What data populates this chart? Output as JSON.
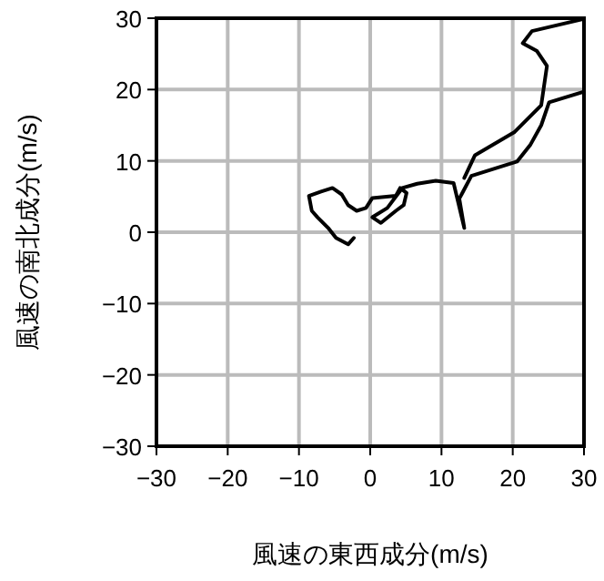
{
  "chart_data": {
    "type": "line",
    "xlabel": "風速の東西成分(m/s)",
    "ylabel": "風速の南北成分(m/s)",
    "series": [
      {
        "color": "#000000",
        "x": [
          -2.3,
          -3.1,
          -4.8,
          -5.9,
          -7.4,
          -8.2,
          -8.6,
          -6.9,
          -5.3,
          -4.0,
          -3.1,
          -1.9,
          -0.6,
          0.3,
          3.6,
          4.2,
          5.1,
          4.7,
          3.6,
          1.5,
          0.3,
          2.4,
          4.5,
          6.6,
          9.2,
          11.7,
          13.2,
          12.5,
          14.2,
          20.6,
          22.5,
          24.0,
          25.1,
          30,
          null,
          30,
          22.7,
          21.4,
          23.4,
          24.8,
          24.0,
          20.2,
          14.7,
          13.2
        ],
        "values": [
          -0.8,
          -1.7,
          -0.8,
          0.6,
          2.1,
          3.0,
          5.1,
          5.7,
          6.2,
          5.3,
          3.8,
          3.0,
          3.4,
          4.8,
          5.1,
          6.2,
          5.5,
          3.8,
          3.0,
          1.3,
          2.1,
          3.4,
          6.2,
          6.8,
          7.2,
          6.9,
          0.6,
          4.7,
          7.9,
          9.9,
          12.3,
          15.0,
          18.2,
          19.7,
          null,
          29.9,
          28.2,
          26.5,
          25.4,
          23.3,
          17.8,
          14.0,
          10.8,
          7.6
        ]
      }
    ],
    "xlim": [
      -30,
      30
    ],
    "ylim": [
      -30,
      30
    ],
    "xticks": [
      {
        "value": -30,
        "label": "−30"
      },
      {
        "value": -20,
        "label": "−20"
      },
      {
        "value": -10,
        "label": "−10"
      },
      0,
      10,
      20,
      30
    ],
    "yticks": [
      {
        "value": -30,
        "label": "−30"
      },
      {
        "value": -20,
        "label": "−20"
      },
      {
        "value": -10,
        "label": "−10"
      },
      0,
      10,
      20,
      30
    ],
    "grid": true
  }
}
